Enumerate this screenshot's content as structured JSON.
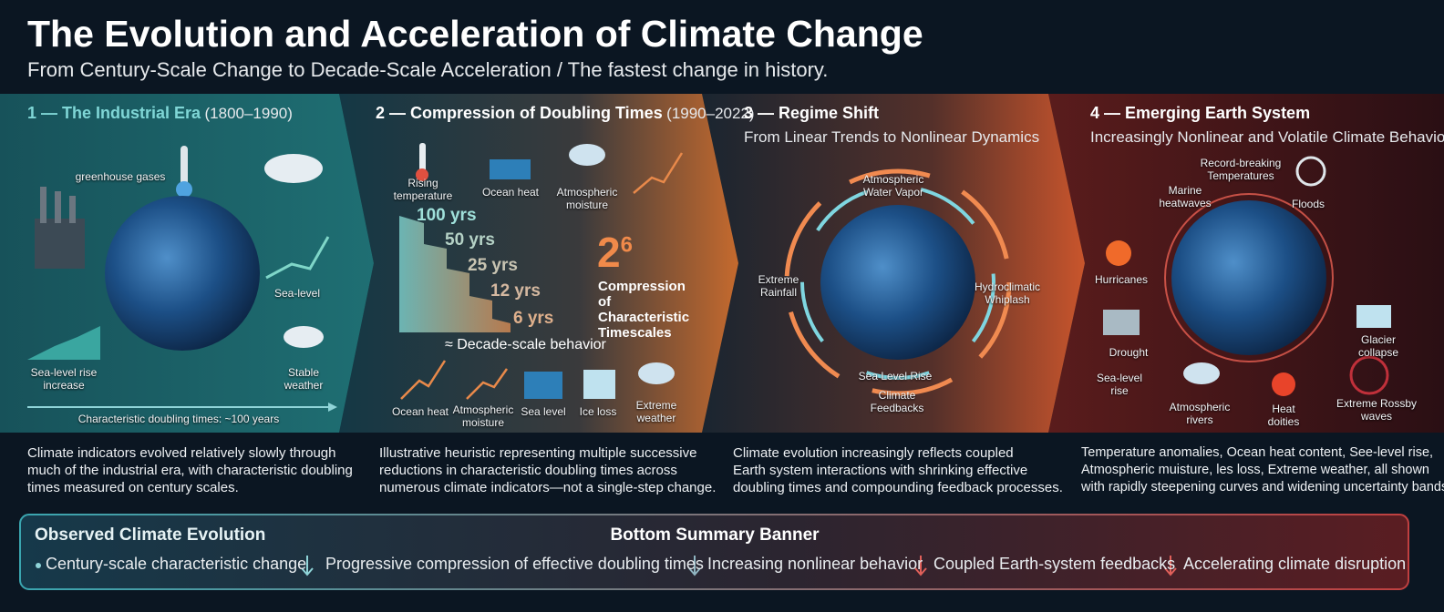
{
  "header": {
    "title": "The Evolution and Acceleration of Climate Change",
    "subtitle": "From Century-Scale Change to Decade-Scale Acceleration / The fastest change in history."
  },
  "panels": [
    {
      "heading": "1 — The Industrial Era",
      "period": "(1800–1990)",
      "labels": [
        "greenhouse gases",
        "Sea-level",
        "Sea-level rise increase",
        "Stable weather"
      ],
      "footer": "Characteristic doubling times: ~100 years",
      "description": [
        "Climate indicators evolved relatively slowly through",
        "much of the industrial era, with characteristic doubling",
        "times measured on century scales."
      ]
    },
    {
      "heading": "2 — Compression of Doubling Times",
      "period": "(1990–2022)",
      "top_labels": [
        "Rising temperature",
        "Ocean heat",
        "Atmospheric moisture"
      ],
      "steps": [
        "100 yrs",
        "50 yrs",
        "25 yrs",
        "12 yrs",
        "6 yrs"
      ],
      "factor_base": "2",
      "factor_exponent": "6",
      "callout": "Compression of Characteristic Timescales",
      "behavior": "≈ Decade-scale behavior",
      "bottom_labels": [
        "Ocean heat",
        "Atmospheric moisture",
        "Sea level",
        "Ice loss",
        "Extreme weather"
      ],
      "description": [
        "Illustrative heuristic representing multiple successive",
        "reductions in characteristic doubling times across",
        "numerous climate indicators—not a single-step change."
      ]
    },
    {
      "heading": "3 — Regime Shift",
      "subheading": "From Linear Trends to Nonlinear Dynamics",
      "labels": [
        "Atmospheric Water Vapor",
        "Extreme Rainfall",
        "Hydroclimatic Whiplash",
        "Sea Level Rise",
        "Climate Feedbacks"
      ],
      "description": [
        "Climate evolution increasingly reflects coupled",
        "Earth system interactions with shrinking effective",
        "doubling times and compounding feedback processes."
      ]
    },
    {
      "heading": "4 — Emerging Earth System",
      "subheading": "Increasingly Nonlinear and Volatile Climate Behavior",
      "labels": [
        "Record-breaking Temperatures",
        "Marine heatwaves",
        "Floods",
        "Hurricanes",
        "Drought",
        "Glacier collapse",
        "Sea-level rise",
        "Atmospheric rivers",
        "Heat doities",
        "Extreme Rossby waves"
      ],
      "description": [
        "Temperature anomalies, Ocean heat content, See-level rise,",
        "Atmospheric muisture, les loss, Extreme weather, all shown",
        "with rapidly steepening curves and widening uncertainty bands."
      ]
    }
  ],
  "banner": {
    "title": "Observed Climate Evolution",
    "center_title": "Bottom Summary Banner",
    "items": [
      "Century-scale characteristic change",
      "Progressive compression of effective doubling times",
      "Increasing nonlinear behavior",
      "Coupled Earth-system feedbacks",
      "Accelerating climate disruption"
    ]
  }
}
